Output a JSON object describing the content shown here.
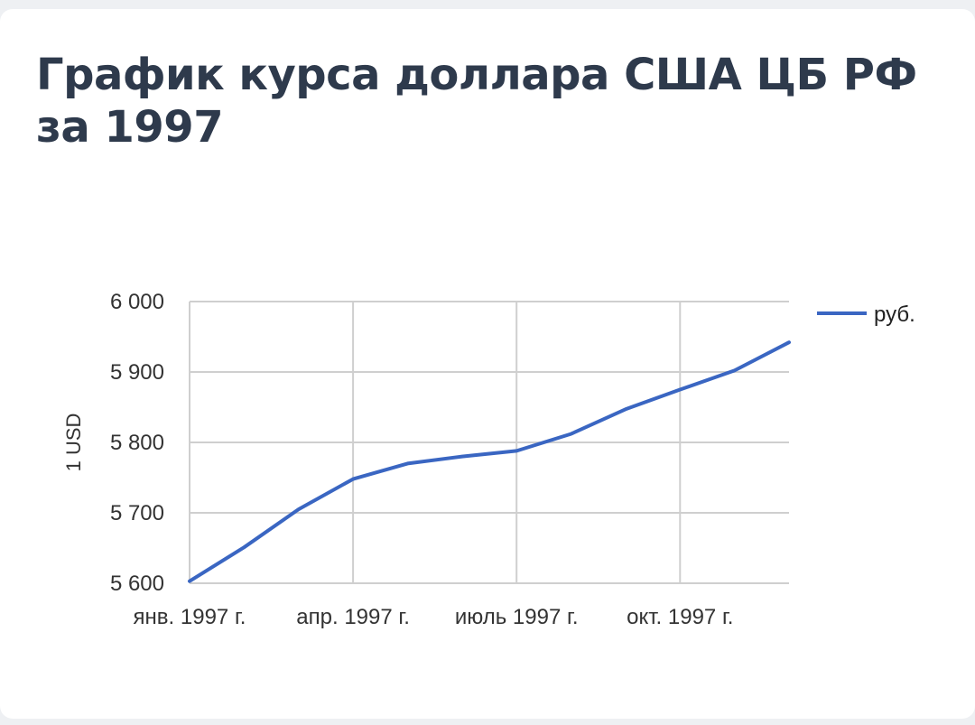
{
  "page": {
    "title": "График курса доллара США ЦБ РФ за 1997"
  },
  "chart_data": {
    "type": "line",
    "ylabel": "1 USD",
    "ylim": [
      5600,
      6000
    ],
    "yticks": [
      5600,
      5700,
      5800,
      5900,
      6000
    ],
    "ytick_labels": [
      "5 600",
      "5 700",
      "5 800",
      "5 900",
      "6 000"
    ],
    "xlim": [
      0,
      11
    ],
    "xticks": [
      0,
      3,
      6,
      9
    ],
    "xtick_labels": [
      "янв. 1997 г.",
      "апр. 1997 г.",
      "июль 1997 г.",
      "окт. 1997 г."
    ],
    "grid": true,
    "legend": "right",
    "series": [
      {
        "name": "руб.",
        "color": "#3a66c2",
        "x": [
          0,
          1,
          2,
          3,
          4,
          5,
          6,
          7,
          8,
          9,
          10,
          11
        ],
        "values": [
          5603,
          5651,
          5705,
          5748,
          5770,
          5780,
          5788,
          5812,
          5847,
          5875,
          5902,
          5942
        ]
      }
    ]
  }
}
